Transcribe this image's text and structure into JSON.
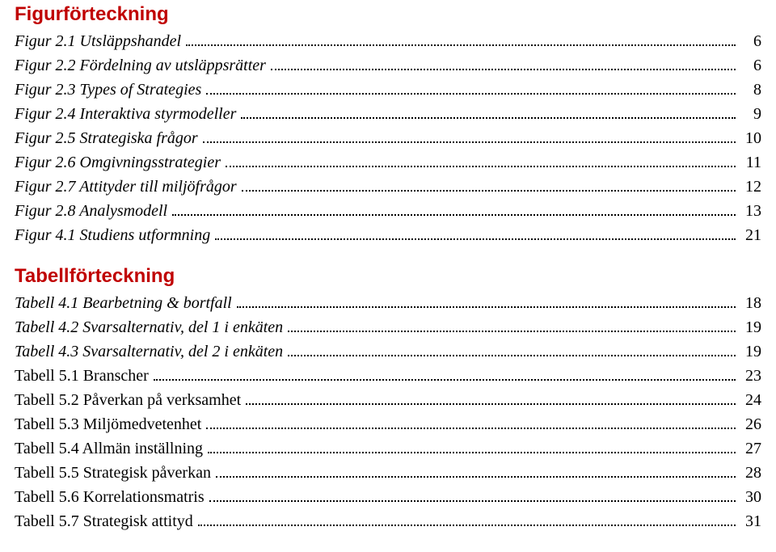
{
  "colors": {
    "heading": "#c00000",
    "text": "#000000",
    "background": "#ffffff",
    "dots": "#000000"
  },
  "typography": {
    "heading_font": "Arial",
    "heading_size_pt": 18,
    "heading_weight": "bold",
    "body_font": "Times New Roman",
    "body_size_pt": 15,
    "italic_entries": true
  },
  "section1": {
    "title": "Figurförteckning",
    "entries": [
      {
        "label": "Figur 2.1 Utsläppshandel",
        "page": "6"
      },
      {
        "label": "Figur 2.2 Fördelning av utsläppsrätter",
        "page": "6"
      },
      {
        "label": "Figur 2.3 Types of Strategies",
        "page": "8"
      },
      {
        "label": "Figur 2.4 Interaktiva styrmodeller",
        "page": "9"
      },
      {
        "label": "Figur 2.5 Strategiska frågor",
        "page": "10"
      },
      {
        "label": "Figur 2.6 Omgivningsstrategier",
        "page": "11"
      },
      {
        "label": "Figur 2.7 Attityder till miljöfrågor",
        "page": "12"
      },
      {
        "label": "Figur 2.8 Analysmodell",
        "page": "13"
      },
      {
        "label": "Figur 4.1 Studiens utformning",
        "page": "21"
      }
    ]
  },
  "section2": {
    "title": "Tabellförteckning",
    "entries": [
      {
        "label": "Tabell 4.1 Bearbetning & bortfall",
        "page": "18"
      },
      {
        "label": "Tabell 4.2 Svarsalternativ, del 1 i enkäten",
        "page": "19"
      },
      {
        "label": "Tabell 4.3 Svarsalternativ, del 2 i enkäten",
        "page": "19"
      },
      {
        "label": "Tabell 5.1 Branscher",
        "page": "23"
      },
      {
        "label": "Tabell 5.2 Påverkan på verksamhet",
        "page": "24"
      },
      {
        "label": "Tabell 5.3 Miljömedvetenhet",
        "page": "26"
      },
      {
        "label": "Tabell 5.4 Allmän inställning",
        "page": "27"
      },
      {
        "label": "Tabell 5.5 Strategisk påverkan",
        "page": "28"
      },
      {
        "label": "Tabell 5.6 Korrelationsmatris",
        "page": "30"
      },
      {
        "label": "Tabell 5.7 Strategisk attityd",
        "page": "31"
      }
    ]
  }
}
